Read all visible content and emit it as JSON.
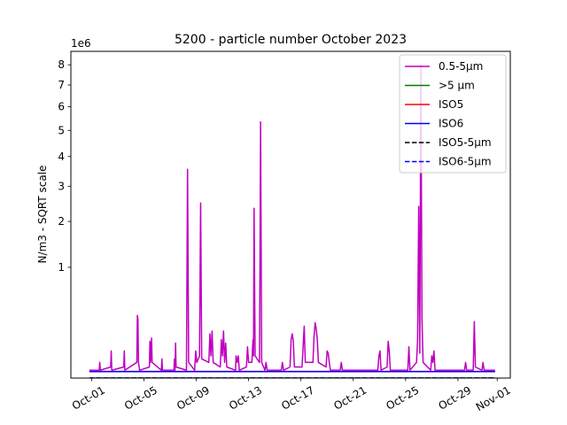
{
  "chart_data": {
    "type": "line",
    "title": "5200 - particle number October 2023",
    "ylabel": "N/m3 - SQRT scale",
    "xlabel": "",
    "y_scale": "sqrt",
    "y_multiplier": "1e6",
    "ylim": [
      0,
      8.7
    ],
    "x_domain": [
      "2023-09-29T10:00",
      "2023-11-02T00:00"
    ],
    "x_ticks": [
      {
        "date": "2023-10-01",
        "label": "Oct-01"
      },
      {
        "date": "2023-10-05",
        "label": "Oct-05"
      },
      {
        "date": "2023-10-09",
        "label": "Oct-09"
      },
      {
        "date": "2023-10-13",
        "label": "Oct-13"
      },
      {
        "date": "2023-10-17",
        "label": "Oct-17"
      },
      {
        "date": "2023-10-21",
        "label": "Oct-21"
      },
      {
        "date": "2023-10-25",
        "label": "Oct-25"
      },
      {
        "date": "2023-10-29",
        "label": "Oct-29"
      },
      {
        "date": "2023-11-01",
        "label": "Nov-01"
      }
    ],
    "y_ticks": [
      1,
      2,
      3,
      4,
      5,
      6,
      7,
      8
    ],
    "legend_position": "top-right",
    "series": [
      {
        "name": "0.5-5µm",
        "color": "#bf00bf",
        "style": "solid",
        "points": [
          [
            "2023-09-30T20:00",
            0.005
          ],
          [
            "2023-10-01T14:00",
            0.005
          ],
          [
            "2023-10-01T15:00",
            0.02
          ],
          [
            "2023-10-01T16:00",
            0.005
          ],
          [
            "2023-10-02T11:00",
            0.01
          ],
          [
            "2023-10-02T12:00",
            0.06
          ],
          [
            "2023-10-02T13:00",
            0.005
          ],
          [
            "2023-10-03T11:00",
            0.01
          ],
          [
            "2023-10-03T12:00",
            0.06
          ],
          [
            "2023-10-03T13:00",
            0.005
          ],
          [
            "2023-10-04T11:00",
            0.02
          ],
          [
            "2023-10-04T12:00",
            0.32
          ],
          [
            "2023-10-04T13:00",
            0.28
          ],
          [
            "2023-10-04T14:00",
            0.02
          ],
          [
            "2023-10-04T16:00",
            0.005
          ],
          [
            "2023-10-05T10:00",
            0.01
          ],
          [
            "2023-10-05T11:00",
            0.11
          ],
          [
            "2023-10-05T12:00",
            0.02
          ],
          [
            "2023-10-05T14:00",
            0.13
          ],
          [
            "2023-10-05T15:00",
            0.02
          ],
          [
            "2023-10-06T08:00",
            0.005
          ],
          [
            "2023-10-06T09:00",
            0.03
          ],
          [
            "2023-10-06T10:00",
            0.005
          ],
          [
            "2023-10-07T07:00",
            0.005
          ],
          [
            "2023-10-07T08:00",
            0.03
          ],
          [
            "2023-10-07T09:00",
            0.005
          ],
          [
            "2023-10-07T10:00",
            0.1
          ],
          [
            "2023-10-07T11:00",
            0.01
          ],
          [
            "2023-10-08T06:00",
            0.005
          ],
          [
            "2023-10-08T08:00",
            3.55
          ],
          [
            "2023-10-08T10:00",
            0.02
          ],
          [
            "2023-10-08T21:00",
            0.005
          ],
          [
            "2023-10-08T23:00",
            0.06
          ],
          [
            "2023-10-09T01:00",
            0.02
          ],
          [
            "2023-10-09T06:00",
            0.04
          ],
          [
            "2023-10-09T08:00",
            2.5
          ],
          [
            "2023-10-09T10:00",
            0.03
          ],
          [
            "2023-10-09T23:00",
            0.02
          ],
          [
            "2023-10-10T01:00",
            0.16
          ],
          [
            "2023-10-10T03:00",
            0.04
          ],
          [
            "2023-10-10T05:00",
            0.18
          ],
          [
            "2023-10-10T07:00",
            0.02
          ],
          [
            "2023-10-10T20:00",
            0.01
          ],
          [
            "2023-10-10T22:00",
            0.12
          ],
          [
            "2023-10-11T00:00",
            0.04
          ],
          [
            "2023-10-11T02:00",
            0.18
          ],
          [
            "2023-10-11T04:00",
            0.02
          ],
          [
            "2023-10-11T06:00",
            0.1
          ],
          [
            "2023-10-11T08:00",
            0.01
          ],
          [
            "2023-10-12T00:00",
            0.005
          ],
          [
            "2023-10-12T01:00",
            0.04
          ],
          [
            "2023-10-12T03:00",
            0.02
          ],
          [
            "2023-10-12T05:00",
            0.04
          ],
          [
            "2023-10-12T07:00",
            0.005
          ],
          [
            "2023-10-12T20:00",
            0.01
          ],
          [
            "2023-10-12T22:00",
            0.08
          ],
          [
            "2023-10-13T00:00",
            0.02
          ],
          [
            "2023-10-13T06:00",
            0.02
          ],
          [
            "2023-10-13T08:00",
            0.12
          ],
          [
            "2023-10-13T09:00",
            0.04
          ],
          [
            "2023-10-13T10:00",
            2.35
          ],
          [
            "2023-10-13T12:00",
            0.04
          ],
          [
            "2023-10-13T20:00",
            0.02
          ],
          [
            "2023-10-13T22:00",
            5.35
          ],
          [
            "2023-10-14T00:00",
            0.02
          ],
          [
            "2023-10-14T06:00",
            0.005
          ],
          [
            "2023-10-14T08:00",
            0.02
          ],
          [
            "2023-10-14T10:00",
            0.005
          ],
          [
            "2023-10-15T12:00",
            0.005
          ],
          [
            "2023-10-15T14:00",
            0.02
          ],
          [
            "2023-10-15T16:00",
            0.005
          ],
          [
            "2023-10-16T04:00",
            0.01
          ],
          [
            "2023-10-16T06:00",
            0.12
          ],
          [
            "2023-10-16T08:00",
            0.16
          ],
          [
            "2023-10-16T10:00",
            0.11
          ],
          [
            "2023-10-16T12:00",
            0.01
          ],
          [
            "2023-10-17T02:00",
            0.01
          ],
          [
            "2023-10-17T04:00",
            0.08
          ],
          [
            "2023-10-17T06:00",
            0.22
          ],
          [
            "2023-10-17T08:00",
            0.02
          ],
          [
            "2023-10-17T22:00",
            0.02
          ],
          [
            "2023-10-18T00:00",
            0.14
          ],
          [
            "2023-10-18T02:00",
            0.25
          ],
          [
            "2023-10-18T04:00",
            0.2
          ],
          [
            "2023-10-18T06:00",
            0.12
          ],
          [
            "2023-10-18T08:00",
            0.02
          ],
          [
            "2023-10-18T22:00",
            0.01
          ],
          [
            "2023-10-19T00:00",
            0.06
          ],
          [
            "2023-10-19T02:00",
            0.05
          ],
          [
            "2023-10-19T04:00",
            0.02
          ],
          [
            "2023-10-19T06:00",
            0.005
          ],
          [
            "2023-10-20T00:00",
            0.005
          ],
          [
            "2023-10-20T02:00",
            0.02
          ],
          [
            "2023-10-20T04:00",
            0.005
          ],
          [
            "2023-10-22T21:00",
            0.005
          ],
          [
            "2023-10-22T23:00",
            0.04
          ],
          [
            "2023-10-23T01:00",
            0.06
          ],
          [
            "2023-10-23T03:00",
            0.005
          ],
          [
            "2023-10-23T14:00",
            0.01
          ],
          [
            "2023-10-23T16:00",
            0.11
          ],
          [
            "2023-10-23T18:00",
            0.06
          ],
          [
            "2023-10-23T20:00",
            0.005
          ],
          [
            "2023-10-25T04:00",
            0.005
          ],
          [
            "2023-10-25T06:00",
            0.08
          ],
          [
            "2023-10-25T08:00",
            0.005
          ],
          [
            "2023-10-25T20:00",
            0.02
          ],
          [
            "2023-10-25T22:00",
            0.12
          ],
          [
            "2023-10-26T00:00",
            2.4
          ],
          [
            "2023-10-26T02:00",
            0.05
          ],
          [
            "2023-10-26T04:00",
            8.0
          ],
          [
            "2023-10-26T06:00",
            0.28
          ],
          [
            "2023-10-26T08:00",
            0.02
          ],
          [
            "2023-10-26T22:00",
            0.005
          ],
          [
            "2023-10-27T00:00",
            0.04
          ],
          [
            "2023-10-27T02:00",
            0.02
          ],
          [
            "2023-10-27T04:00",
            0.06
          ],
          [
            "2023-10-27T06:00",
            0.005
          ],
          [
            "2023-10-29T12:00",
            0.005
          ],
          [
            "2023-10-29T14:00",
            0.02
          ],
          [
            "2023-10-29T16:00",
            0.005
          ],
          [
            "2023-10-30T04:00",
            0.005
          ],
          [
            "2023-10-30T06:00",
            0.26
          ],
          [
            "2023-10-30T08:00",
            0.01
          ],
          [
            "2023-10-30T20:00",
            0.005
          ],
          [
            "2023-10-30T22:00",
            0.02
          ],
          [
            "2023-10-31T00:00",
            0.005
          ],
          [
            "2023-10-31T20:00",
            0.005
          ]
        ]
      },
      {
        "name": ">5 µm",
        "color": "#008000",
        "style": "solid",
        "points": [
          [
            "2023-09-30T20:00",
            0.0
          ],
          [
            "2023-10-31T20:00",
            0.0
          ]
        ]
      },
      {
        "name": "ISO5",
        "color": "#ff0000",
        "style": "solid",
        "points": [
          [
            "2023-09-30T20:00",
            0.0035
          ],
          [
            "2023-10-31T20:00",
            0.0035
          ]
        ]
      },
      {
        "name": "ISO6",
        "color": "#0000ff",
        "style": "solid",
        "points": [
          [
            "2023-09-30T20:00",
            0.0035
          ],
          [
            "2023-10-31T20:00",
            0.0035
          ]
        ]
      },
      {
        "name": "ISO5-5µm",
        "color": "#000000",
        "style": "dashed",
        "points": [
          [
            "2023-09-30T20:00",
            0.0
          ],
          [
            "2023-10-31T20:00",
            0.0
          ]
        ]
      },
      {
        "name": "ISO6-5µm",
        "color": "#0000ff",
        "style": "dashed",
        "points": [
          [
            "2023-09-30T20:00",
            0.0
          ],
          [
            "2023-10-31T20:00",
            0.0
          ]
        ]
      }
    ]
  }
}
